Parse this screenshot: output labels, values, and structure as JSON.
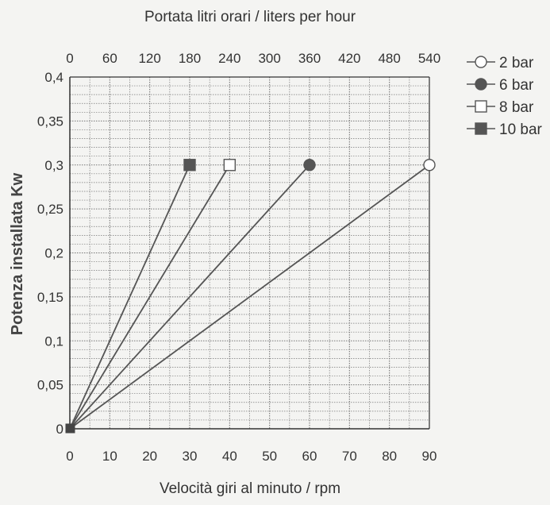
{
  "chart_data": {
    "type": "line",
    "title": "Portata litri orari / liters per hour",
    "xlabel": "Velocità giri al minuto / rpm",
    "ylabel": "Potenza installata Kw",
    "x_ticks": [
      "0",
      "10",
      "20",
      "30",
      "40",
      "50",
      "60",
      "70",
      "80",
      "90"
    ],
    "top_ticks": [
      "0",
      "60",
      "120",
      "180",
      "240",
      "300",
      "360",
      "420",
      "480",
      "540"
    ],
    "y_ticks": [
      "0",
      "0,05",
      "0,1",
      "0,15",
      "0,2",
      "0,25",
      "0,3",
      "0,35",
      "0,4"
    ],
    "xlim": [
      0,
      90
    ],
    "ylim": [
      0,
      0.4
    ],
    "top_xlim": [
      0,
      540
    ],
    "grid": true,
    "legend_position": "right",
    "series": [
      {
        "name": "2 bar",
        "marker": "circle-open",
        "x": [
          0,
          90
        ],
        "y": [
          0,
          0.3
        ]
      },
      {
        "name": "6 bar",
        "marker": "circle-filled",
        "x": [
          0,
          60
        ],
        "y": [
          0,
          0.3
        ]
      },
      {
        "name": "8 bar",
        "marker": "square-open",
        "x": [
          0,
          40
        ],
        "y": [
          0,
          0.3
        ]
      },
      {
        "name": "10 bar",
        "marker": "square-filled",
        "x": [
          0,
          30
        ],
        "y": [
          0,
          0.3
        ]
      }
    ],
    "colors": {
      "line": "#555555",
      "grid": "#777777",
      "marker_fill": "#555555",
      "background": "#f4f4f2"
    }
  }
}
